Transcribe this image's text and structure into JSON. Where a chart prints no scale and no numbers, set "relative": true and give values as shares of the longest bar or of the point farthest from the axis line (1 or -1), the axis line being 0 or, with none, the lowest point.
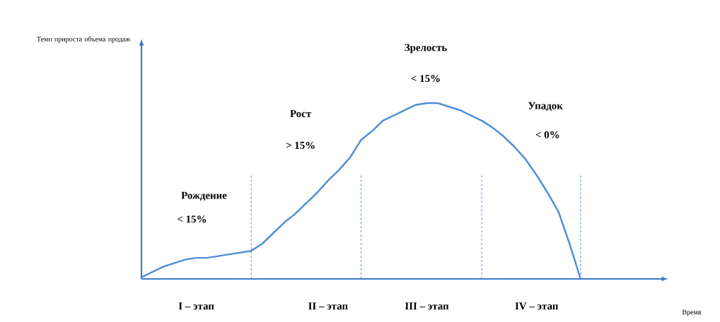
{
  "chart_data": {
    "type": "line",
    "relative": true,
    "categories": [
      null,
      null,
      null,
      null,
      null,
      "I – этап",
      null,
      null,
      null,
      null,
      null,
      null,
      null,
      null,
      null,
      null,
      null,
      "II – этап",
      null,
      null,
      null,
      null,
      null,
      null,
      null,
      null,
      "III – этап",
      null,
      null,
      null,
      null,
      null,
      null,
      null,
      null,
      null,
      "IV – этап",
      null,
      null,
      null,
      null
    ],
    "series": [
      {
        "color": "#4f8fd8",
        "values": [
          0.01,
          0.04,
          0.07,
          0.09,
          0.11,
          0.12,
          0.12,
          0.13,
          0.14,
          0.15,
          0.16,
          0.2,
          0.26,
          0.32,
          0.37,
          0.43,
          0.49,
          0.56,
          0.62,
          0.69,
          0.79,
          0.84,
          0.9,
          0.93,
          0.96,
          0.99,
          1,
          1,
          0.98,
          0.96,
          0.93,
          0.9,
          0.86,
          0.81,
          0.75,
          0.68,
          0.59,
          0.49,
          0.38,
          0.2,
          0
        ]
      }
    ],
    "annotations": [
      "Рождение",
      "< 15%",
      "Рост",
      "> 15%",
      "Зрелость",
      "< 15%",
      "Упадок",
      "< 0%",
      "Время",
      "Темп прироста объема продаж"
    ]
  }
}
